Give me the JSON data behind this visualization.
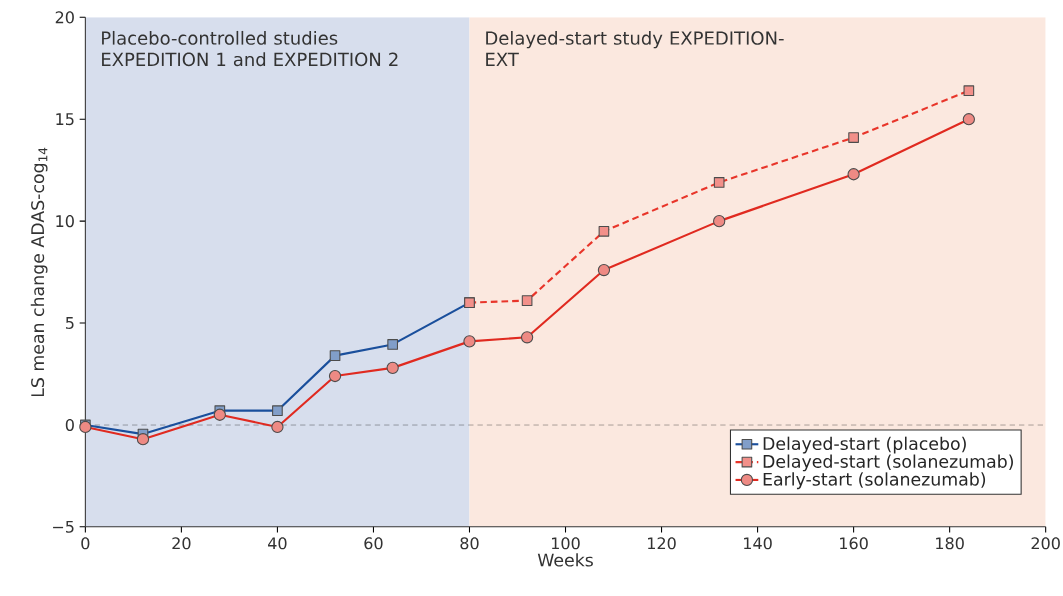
{
  "chart_data": {
    "type": "line",
    "xlabel": "Weeks",
    "ylabel": "LS mean change ADAS-cog$_{14}$",
    "xlim": [
      0,
      200
    ],
    "xticks": [
      0,
      20,
      40,
      60,
      80,
      100,
      120,
      140,
      160,
      180,
      200
    ],
    "ylim": [
      -5,
      20
    ],
    "yticks": [
      {
        "value": -5,
        "label": "−5"
      },
      0,
      5,
      10,
      15,
      20
    ],
    "series": [
      {
        "name": "Delayed-start (placebo)",
        "color": "#1a4f9c",
        "marker": "square",
        "line_style": "solid",
        "x": [
          0,
          12,
          28,
          40,
          52,
          64,
          80
        ],
        "values": [
          0,
          -0.45,
          0.7,
          0.7,
          3.4,
          3.95,
          6.0
        ]
      },
      {
        "name": "Delayed-start (solanezumab)",
        "color": "#e8352a",
        "marker": "square",
        "line_style": "dashed",
        "x": [
          80,
          92,
          108,
          132,
          160,
          184
        ],
        "values": [
          6.0,
          6.1,
          9.5,
          11.9,
          14.1,
          16.4
        ]
      },
      {
        "name": "Early-start (solanezumab)",
        "color": "#e02a20",
        "marker": "circle",
        "line_style": "solid",
        "x": [
          0,
          12,
          28,
          40,
          52,
          64,
          80,
          92,
          108,
          132,
          160,
          184
        ],
        "values": [
          -0.1,
          -0.7,
          0.5,
          -0.1,
          2.4,
          2.8,
          4.1,
          4.3,
          7.6,
          10.0,
          12.3,
          15.0
        ]
      }
    ],
    "bands": [
      {
        "axis": "x",
        "from": 0,
        "to": 80,
        "label": "Placebo-controlled studies EXPEDITION 1 and EXPEDITION 2",
        "color": "#d7deed"
      },
      {
        "axis": "x",
        "from": 80,
        "to": 200,
        "label": "Delayed-start study EXPEDITION-EXT",
        "color": "#fbe8df"
      }
    ],
    "ref_lines": [
      {
        "axis": "y",
        "value": 0,
        "color": "#000000",
        "line_style": "dashed"
      }
    ],
    "legend": "bottom right"
  }
}
